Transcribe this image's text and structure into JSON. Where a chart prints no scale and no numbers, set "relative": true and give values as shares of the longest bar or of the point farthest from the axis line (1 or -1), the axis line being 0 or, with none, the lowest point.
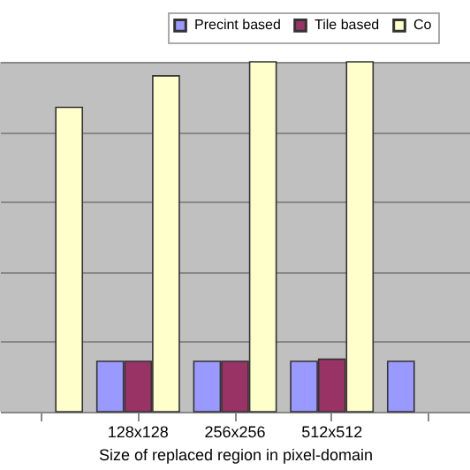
{
  "chart_data": {
    "type": "bar",
    "relative": true,
    "xlabel": "Size of replaced region in pixel-domain",
    "categories": [
      null,
      "128x128",
      "256x256",
      "512x512",
      null
    ],
    "series": [
      {
        "name": "Precint based",
        "color": "#9999ff",
        "values": [
          null,
          0.144,
          0.144,
          0.144,
          0.144
        ]
      },
      {
        "name": "Tile based",
        "color": "#993366",
        "values": [
          null,
          0.144,
          0.144,
          0.15,
          null
        ]
      },
      {
        "name": "Co",
        "color": "#ffffcc",
        "values": [
          0.87,
          0.96,
          1,
          1,
          null
        ]
      }
    ],
    "grid": "y",
    "legend": "top right"
  }
}
